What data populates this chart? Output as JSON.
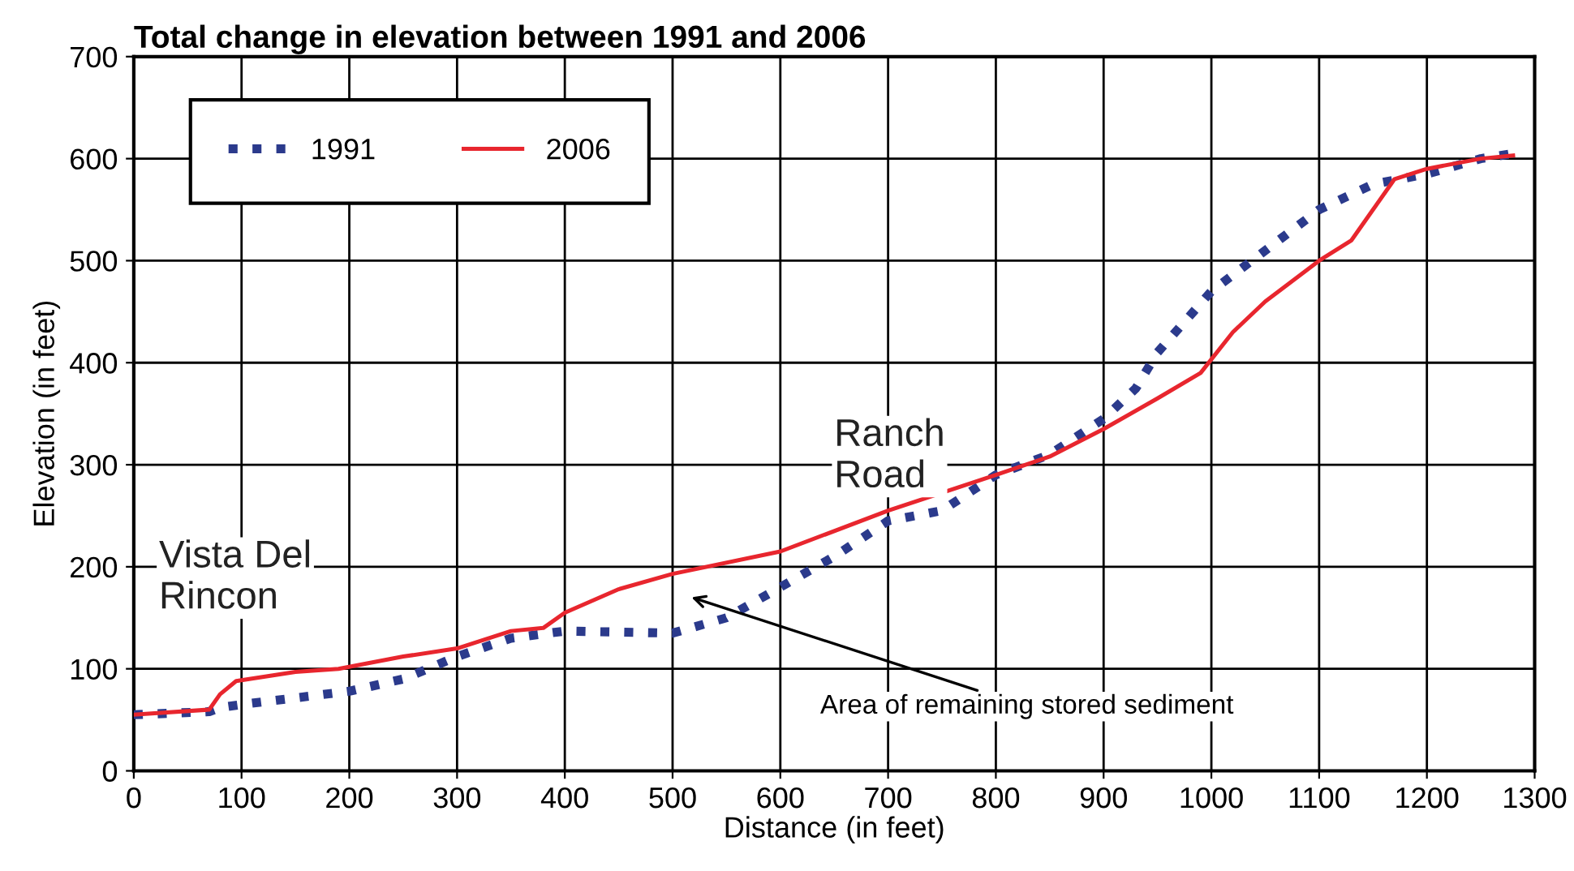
{
  "chart_data": {
    "type": "line",
    "title": "Total change in elevation between 1991 and 2006",
    "xlabel": "Distance (in feet)",
    "ylabel": "Elevation (in feet)",
    "xlim": [
      0,
      1300
    ],
    "xticks": [
      0,
      100,
      200,
      300,
      400,
      500,
      600,
      700,
      800,
      900,
      1000,
      1100,
      1200,
      1300
    ],
    "ylim": [
      0,
      700
    ],
    "yticks": [
      0,
      100,
      200,
      300,
      400,
      500,
      600,
      700
    ],
    "grid": true,
    "legend": "top left",
    "series": [
      {
        "name": "1991",
        "color": "#2b3a8c",
        "line_style": "dotted",
        "x": [
          0,
          70,
          80,
          100,
          200,
          250,
          300,
          350,
          400,
          500,
          550,
          600,
          650,
          700,
          750,
          800,
          850,
          900,
          930,
          950,
          1000,
          1050,
          1100,
          1150,
          1200,
          1250,
          1280
        ],
        "values": [
          55,
          58,
          62,
          65,
          78,
          90,
          112,
          130,
          137,
          135,
          150,
          180,
          210,
          245,
          255,
          290,
          310,
          345,
          375,
          410,
          470,
          510,
          550,
          575,
          585,
          600,
          605
        ]
      },
      {
        "name": "2006",
        "color": "#e8262e",
        "line_style": "solid",
        "x": [
          0,
          70,
          80,
          95,
          150,
          190,
          250,
          300,
          350,
          380,
          400,
          450,
          500,
          600,
          700,
          800,
          850,
          900,
          950,
          990,
          1020,
          1050,
          1100,
          1130,
          1150,
          1170,
          1200,
          1250,
          1280
        ],
        "values": [
          55,
          60,
          75,
          88,
          97,
          100,
          112,
          120,
          137,
          140,
          155,
          178,
          193,
          215,
          255,
          290,
          308,
          335,
          365,
          390,
          430,
          460,
          500,
          520,
          550,
          580,
          590,
          600,
          603
        ]
      }
    ],
    "annotations": [
      "Vista Del\nRincon",
      "Ranch\nRoad",
      "Area of remaining stored sediment"
    ]
  }
}
